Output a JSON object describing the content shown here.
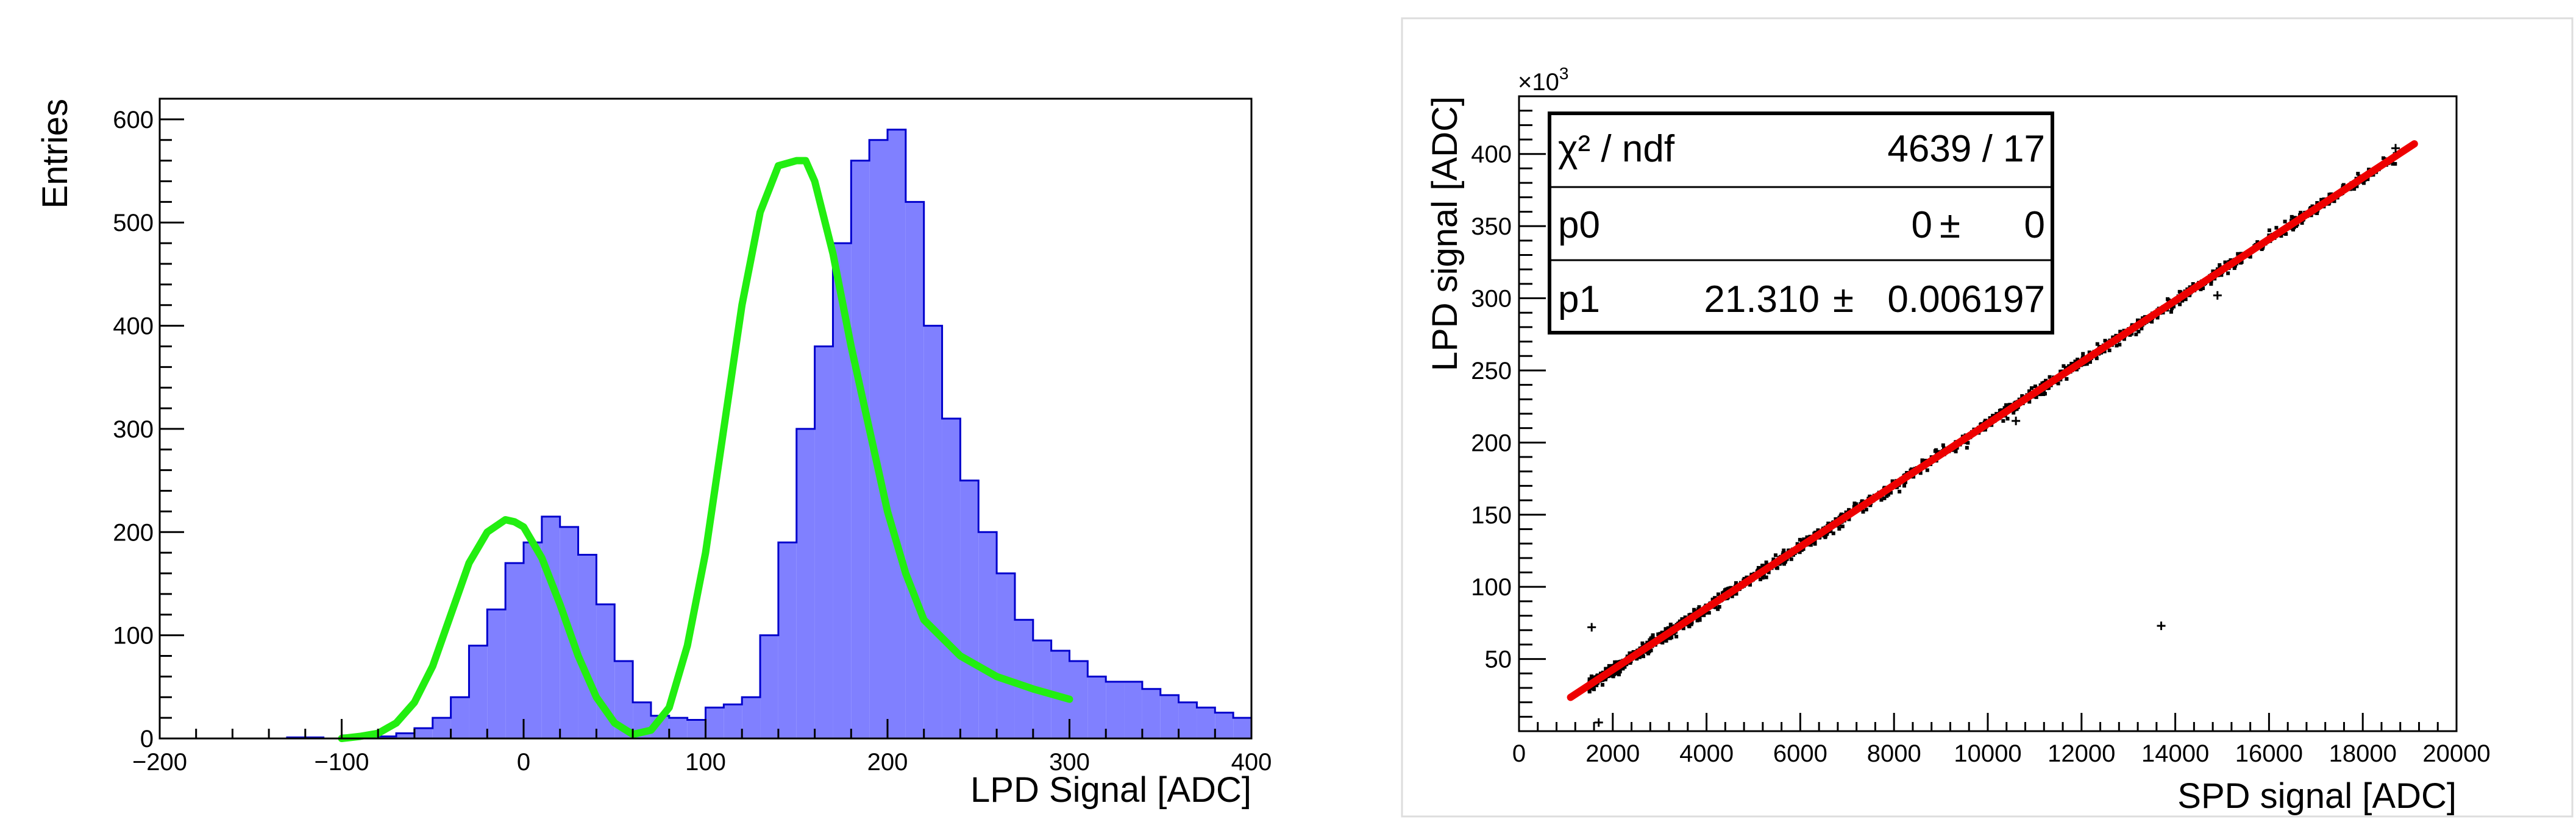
{
  "chart_data": [
    {
      "type": "bar",
      "title": "",
      "xlabel": "LPD Signal [ADC]",
      "ylabel": "Entries",
      "xlim": [
        -200,
        400
      ],
      "ylim": [
        0,
        620
      ],
      "xticks": [
        -200,
        -100,
        0,
        100,
        200,
        300,
        400
      ],
      "yticks": [
        0,
        100,
        200,
        300,
        400,
        500,
        600
      ],
      "bin_width": 10,
      "bin_start": -200,
      "values": [
        0,
        0,
        0,
        0,
        0,
        0,
        0,
        1,
        1,
        0,
        3,
        3,
        2,
        5,
        10,
        20,
        40,
        90,
        125,
        170,
        190,
        215,
        205,
        178,
        130,
        75,
        35,
        22,
        20,
        18,
        30,
        33,
        40,
        100,
        190,
        300,
        380,
        480,
        560,
        580,
        590,
        520,
        400,
        310,
        250,
        200,
        160,
        115,
        95,
        85,
        75,
        60,
        55,
        55,
        48,
        42,
        35,
        30,
        25,
        20
      ],
      "fit_curve": {
        "name": "fit",
        "color": "#22ee11",
        "x": [
          -100,
          -90,
          -80,
          -70,
          -60,
          -50,
          -40,
          -30,
          -20,
          -10,
          -5,
          0,
          10,
          20,
          30,
          40,
          50,
          60,
          70,
          80,
          90,
          100,
          110,
          120,
          130,
          140,
          150,
          155,
          160,
          170,
          180,
          190,
          200,
          210,
          220,
          240,
          260,
          280,
          300
        ],
        "y": [
          0,
          2,
          5,
          15,
          35,
          70,
          120,
          170,
          200,
          212,
          210,
          205,
          175,
          130,
          80,
          40,
          15,
          4,
          8,
          30,
          90,
          180,
          300,
          420,
          510,
          555,
          560,
          560,
          540,
          470,
          380,
          300,
          220,
          160,
          115,
          80,
          60,
          48,
          38
        ]
      },
      "colors": {
        "fill": "#8080ff",
        "edge": "#0000cc"
      }
    },
    {
      "type": "scatter",
      "title": "",
      "xlabel": "SPD signal [ADC]",
      "ylabel": "LPD signal [ADC]",
      "y_exponent_label": "×10",
      "y_exponent_power": "3",
      "xlim": [
        0,
        20000
      ],
      "ylim": [
        0,
        440
      ],
      "xticks": [
        0,
        2000,
        4000,
        6000,
        8000,
        10000,
        12000,
        14000,
        16000,
        18000,
        20000
      ],
      "yticks": [
        50,
        100,
        150,
        200,
        250,
        300,
        350,
        400
      ],
      "fit_line": {
        "slope": 0.02131,
        "intercept": 0,
        "x_range": [
          1100,
          19100
        ],
        "color": "#ee0000"
      },
      "outliers": [
        {
          "x": 13700,
          "y": 73
        },
        {
          "x": 1550,
          "y": 72
        },
        {
          "x": 1700,
          "y": 6
        },
        {
          "x": 18700,
          "y": 404
        },
        {
          "x": 14900,
          "y": 302
        },
        {
          "x": 10600,
          "y": 215
        }
      ],
      "stats_box": {
        "rows": [
          {
            "name": "χ² / ndf",
            "value": "4639 / 17",
            "error": ""
          },
          {
            "name": "p0",
            "value": "0",
            "pm": "±",
            "error": "0"
          },
          {
            "name": "p1",
            "value": "21.310",
            "pm": "±",
            "error": "0.006197"
          }
        ]
      },
      "colors": {
        "points": "#000000"
      }
    }
  ]
}
